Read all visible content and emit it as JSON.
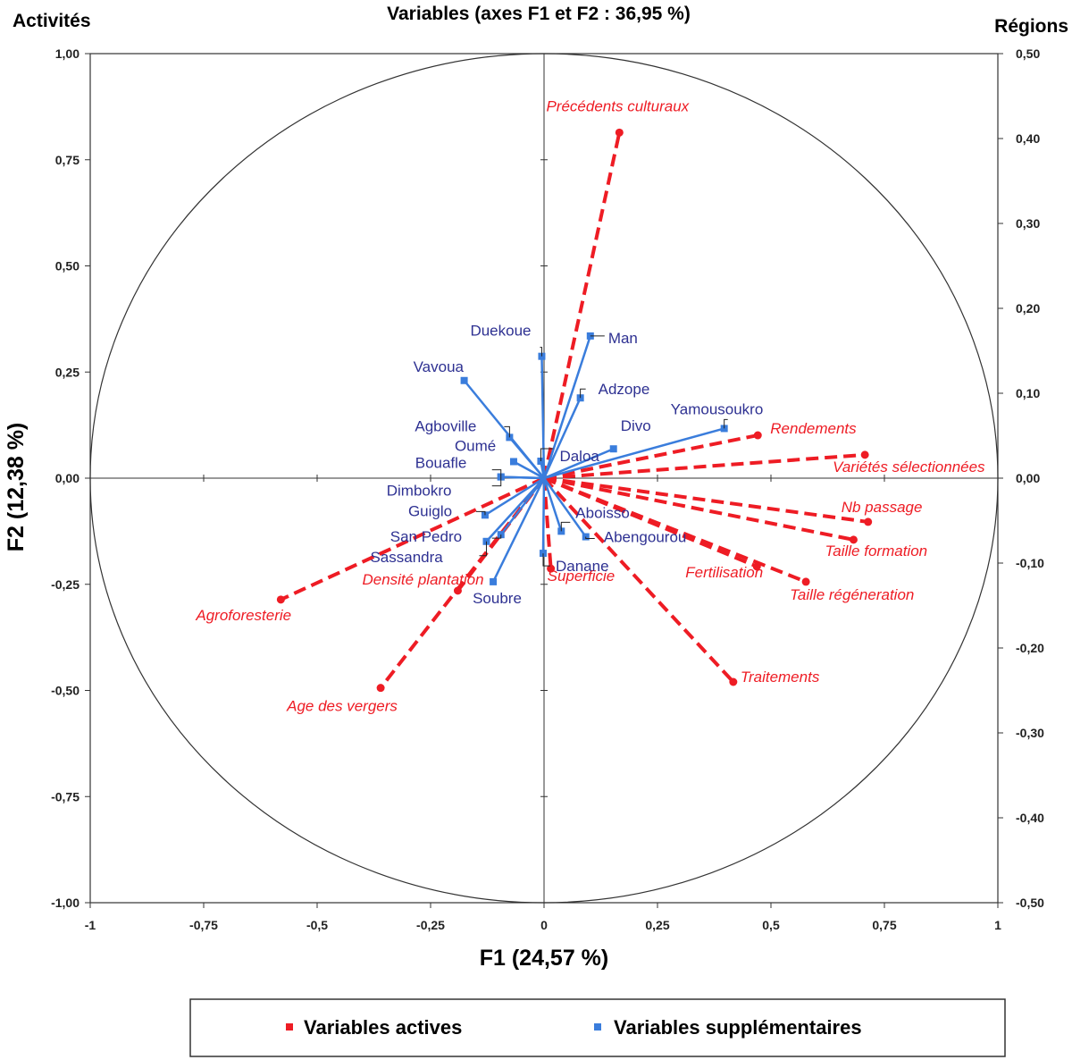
{
  "chart_data": {
    "type": "scatter",
    "title": "Variables (axes F1 et F2 : 36,95 %)",
    "left_axis_title": "Activités",
    "right_axis_title": "Régions",
    "xlabel": "F1 (24,57 %)",
    "ylabel": "F2 (12,38 %)",
    "xlim": [
      -1,
      1
    ],
    "ylim_left": [
      -1,
      1
    ],
    "ylim_right": [
      -0.5,
      0.5
    ],
    "x_ticks": [
      "-1",
      "-0,75",
      "-0,5",
      "-0,25",
      "0",
      "0,25",
      "0,5",
      "0,75",
      "1"
    ],
    "y_ticks_left": [
      "1,00",
      "0,75",
      "0,50",
      "0,25",
      "0,00",
      "-0,25",
      "-0,50",
      "-0,75",
      "-1,00"
    ],
    "y_ticks_right": [
      "0,50",
      "0,40",
      "0,30",
      "0,20",
      "0,10",
      "0,00",
      "-0,10",
      "-0,20",
      "-0,30",
      "-0,40",
      "-0,50"
    ],
    "circle": true,
    "legend_position": "bottom",
    "colors": {
      "active": "#ee1c24",
      "supplementary": "#3a7ddc",
      "supp_label": "#2e3192",
      "circle": "#333333"
    },
    "series": [
      {
        "name": "Variables actives",
        "style": "dashed-vector",
        "points": [
          {
            "label": "Précédents culturaux",
            "x": 0.166,
            "y": 0.814
          },
          {
            "label": "Rendements",
            "x": 0.471,
            "y": 0.101
          },
          {
            "label": "Variétés sélectionnées",
            "x": 0.707,
            "y": 0.055
          },
          {
            "label": "Nb passage",
            "x": 0.714,
            "y": -0.103
          },
          {
            "label": "Taille formation",
            "x": 0.682,
            "y": -0.145
          },
          {
            "label": "Fertilisation",
            "x": 0.469,
            "y": -0.208
          },
          {
            "label": "Taille régéneration",
            "x": 0.577,
            "y": -0.244
          },
          {
            "label": "Traitements",
            "x": 0.417,
            "y": -0.48
          },
          {
            "label": "Superficie",
            "x": 0.015,
            "y": -0.213
          },
          {
            "label": "Densité plantation",
            "x": -0.19,
            "y": -0.265
          },
          {
            "label": "Agroforesterie",
            "x": -0.58,
            "y": -0.286
          },
          {
            "label": "Age des vergers",
            "x": -0.36,
            "y": -0.494
          }
        ]
      },
      {
        "name": "Variables supplémentaires",
        "style": "solid-vector",
        "points": [
          {
            "label": "Man",
            "x": 0.102,
            "y": 0.335
          },
          {
            "label": "Duekoue",
            "x": -0.005,
            "y": 0.287
          },
          {
            "label": "Vavoua",
            "x": -0.176,
            "y": 0.23
          },
          {
            "label": "Adzope",
            "x": 0.08,
            "y": 0.189
          },
          {
            "label": "Yamousoukro",
            "x": 0.397,
            "y": 0.117
          },
          {
            "label": "Agboville",
            "x": -0.076,
            "y": 0.096
          },
          {
            "label": "Divo",
            "x": 0.153,
            "y": 0.069
          },
          {
            "label": "Daloa",
            "x": -0.007,
            "y": 0.04
          },
          {
            "label": "Oumé",
            "x": -0.067,
            "y": 0.039
          },
          {
            "label": "Bouafle",
            "x": -0.095,
            "y": 0.003
          },
          {
            "label": "Dimbokro",
            "x": -0.095,
            "y": 0.003
          },
          {
            "label": "Guiglo",
            "x": -0.13,
            "y": -0.087
          },
          {
            "label": "San Pedro",
            "x": -0.095,
            "y": -0.133
          },
          {
            "label": "Aboisso",
            "x": 0.038,
            "y": -0.125
          },
          {
            "label": "Abengourou",
            "x": 0.092,
            "y": -0.138
          },
          {
            "label": "Sassandra",
            "x": -0.127,
            "y": -0.149
          },
          {
            "label": "Danane",
            "x": -0.002,
            "y": -0.177
          },
          {
            "label": "Soubre",
            "x": -0.112,
            "y": -0.244
          }
        ]
      }
    ]
  },
  "legend": {
    "active_label": "Variables actives",
    "supp_label": "Variables supplémentaires"
  }
}
